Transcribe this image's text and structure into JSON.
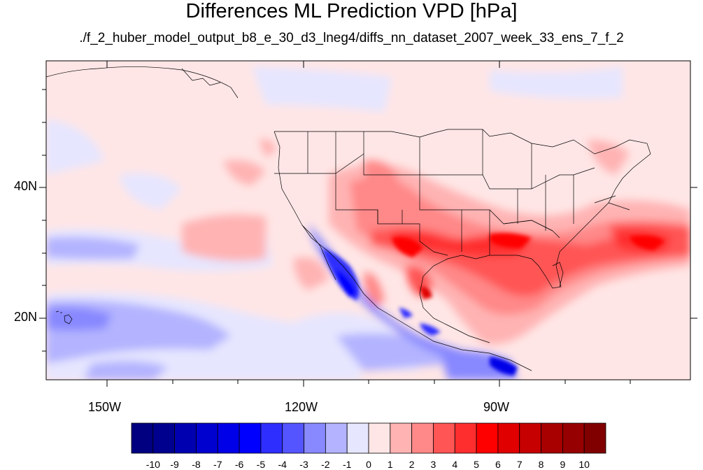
{
  "title": "Differences ML Prediction VPD [hPa]",
  "subtitle": "./f_2_huber_model_output_b8_e_30_d3_lneg4/diffs_nn_dataset_2007_week_33_ens_7_f_2",
  "map": {
    "lon_range": [
      -160,
      -62
    ],
    "lat_range": [
      10,
      59
    ],
    "lon_labels": [
      "150W",
      "120W",
      "90W"
    ],
    "lat_labels": [
      "40N",
      "20N"
    ]
  },
  "colorbar": {
    "labels": [
      "-10",
      "-9",
      "-8",
      "-7",
      "-6",
      "-5",
      "-4",
      "-3",
      "-2",
      "-1",
      "0",
      "1",
      "2",
      "3",
      "4",
      "5",
      "6",
      "7",
      "8",
      "9",
      "10"
    ],
    "colors": [
      "#000080",
      "#00008f",
      "#0000b0",
      "#0000cf",
      "#0000e8",
      "#0000ff",
      "#2e2eff",
      "#5555ff",
      "#8888ff",
      "#b3b3ff",
      "#e6e6ff",
      "#ffe6e6",
      "#ffb3b3",
      "#ff8888",
      "#ff5555",
      "#ff2e2e",
      "#ff0000",
      "#e00000",
      "#c60000",
      "#a80000",
      "#960000",
      "#800000"
    ]
  }
}
